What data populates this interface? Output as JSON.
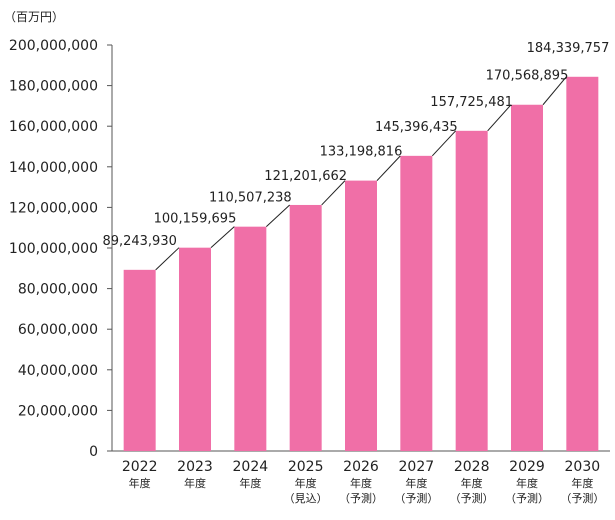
{
  "chart_data": {
    "type": "bar",
    "unit_label": "（百万円）",
    "categories": [
      {
        "year": "2022",
        "line2": "年度",
        "line3": ""
      },
      {
        "year": "2023",
        "line2": "年度",
        "line3": ""
      },
      {
        "year": "2024",
        "line2": "年度",
        "line3": ""
      },
      {
        "year": "2025",
        "line2": "年度",
        "line3": "（見込）"
      },
      {
        "year": "2026",
        "line2": "年度",
        "line3": "（予測）"
      },
      {
        "year": "2027",
        "line2": "年度",
        "line3": "（予測）"
      },
      {
        "year": "2028",
        "line2": "年度",
        "line3": "（予測）"
      },
      {
        "year": "2029",
        "line2": "年度",
        "line3": "（予測）"
      },
      {
        "year": "2030",
        "line2": "年度",
        "line3": "（予測）"
      }
    ],
    "values": [
      89243930,
      100159695,
      110507238,
      121201662,
      133198816,
      145396435,
      157725481,
      170568895,
      184339757
    ],
    "value_labels": [
      "89,243,930",
      "100,159,695",
      "110,507,238",
      "121,201,662",
      "133,198,816",
      "145,396,435",
      "157,725,481",
      "170,568,895",
      "184,339,757"
    ],
    "y_ticks": [
      0,
      20000000,
      40000000,
      60000000,
      80000000,
      100000000,
      120000000,
      140000000,
      160000000,
      180000000,
      200000000
    ],
    "y_tick_labels": [
      "0",
      "20,000,000",
      "40,000,000",
      "60,000,000",
      "80,000,000",
      "100,000,000",
      "120,000,000",
      "140,000,000",
      "160,000,000",
      "180,000,000",
      "200,000,000"
    ],
    "ylim": [
      0,
      200000000
    ],
    "colors": {
      "bar": "#f06fa7",
      "axis": "#555555",
      "connector": "#222222",
      "text": "#222222"
    }
  }
}
